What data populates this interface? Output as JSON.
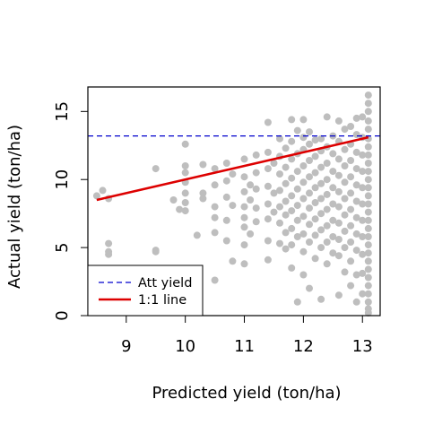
{
  "chart_data": {
    "type": "scatter",
    "xlabel": "Predicted yield (ton/ha)",
    "ylabel": "Actual yield (ton/ha)",
    "xlim": [
      8.35,
      13.3
    ],
    "ylim": [
      0,
      16.8
    ],
    "x_ticks": [
      "9",
      "10",
      "11",
      "12",
      "13"
    ],
    "y_ticks": [
      "0",
      "5",
      "10",
      "15"
    ],
    "grid": false,
    "legend_position": "bottom-left",
    "point_color": "#bebebe",
    "att_yield": {
      "label": "Att yield",
      "value": 13.2,
      "color": "#0000cd",
      "style": "dashed"
    },
    "one_to_one": {
      "label": "1:1 line",
      "color": "#dd0000",
      "style": "solid",
      "points": [
        [
          8.5,
          8.5
        ],
        [
          13.1,
          13.1
        ]
      ]
    },
    "points": [
      [
        8.5,
        8.8
      ],
      [
        8.6,
        9.2
      ],
      [
        8.7,
        8.6
      ],
      [
        8.7,
        5.3
      ],
      [
        8.7,
        4.7
      ],
      [
        8.7,
        4.5
      ],
      [
        9.5,
        10.8
      ],
      [
        9.5,
        4.8
      ],
      [
        9.5,
        4.7
      ],
      [
        9.8,
        8.5
      ],
      [
        9.9,
        7.8
      ],
      [
        10.0,
        12.6
      ],
      [
        10.0,
        11.0
      ],
      [
        10.0,
        10.5
      ],
      [
        10.0,
        9.8
      ],
      [
        10.0,
        9.0
      ],
      [
        10.0,
        8.3
      ],
      [
        10.0,
        7.7
      ],
      [
        10.2,
        5.9
      ],
      [
        10.3,
        11.1
      ],
      [
        10.3,
        9.0
      ],
      [
        10.3,
        8.6
      ],
      [
        10.5,
        10.8
      ],
      [
        10.5,
        9.6
      ],
      [
        10.5,
        8.0
      ],
      [
        10.5,
        7.2
      ],
      [
        10.5,
        6.1
      ],
      [
        10.5,
        2.6
      ],
      [
        10.7,
        11.2
      ],
      [
        10.7,
        9.9
      ],
      [
        10.7,
        8.7
      ],
      [
        10.7,
        7.0
      ],
      [
        10.7,
        5.5
      ],
      [
        10.8,
        10.4
      ],
      [
        10.8,
        8.1
      ],
      [
        10.8,
        4.0
      ],
      [
        11.0,
        11.5
      ],
      [
        11.0,
        10.2
      ],
      [
        11.0,
        9.1
      ],
      [
        11.0,
        8.0
      ],
      [
        11.0,
        7.2
      ],
      [
        11.0,
        6.5
      ],
      [
        11.0,
        5.2
      ],
      [
        11.0,
        3.8
      ],
      [
        11.1,
        9.6
      ],
      [
        11.1,
        8.5
      ],
      [
        11.1,
        6.0
      ],
      [
        11.2,
        11.8
      ],
      [
        11.2,
        10.5
      ],
      [
        11.2,
        9.3
      ],
      [
        11.2,
        7.9
      ],
      [
        11.2,
        6.9
      ],
      [
        11.4,
        14.2
      ],
      [
        11.4,
        12.0
      ],
      [
        11.4,
        10.8
      ],
      [
        11.4,
        9.5
      ],
      [
        11.4,
        8.2
      ],
      [
        11.4,
        7.1
      ],
      [
        11.4,
        5.5
      ],
      [
        11.4,
        4.1
      ],
      [
        11.5,
        11.2
      ],
      [
        11.5,
        9.0
      ],
      [
        11.5,
        7.6
      ],
      [
        11.6,
        13.0
      ],
      [
        11.6,
        11.7
      ],
      [
        11.6,
        10.4
      ],
      [
        11.6,
        9.2
      ],
      [
        11.6,
        8.0
      ],
      [
        11.6,
        6.8
      ],
      [
        11.6,
        5.3
      ],
      [
        11.7,
        12.3
      ],
      [
        11.7,
        10.9
      ],
      [
        11.7,
        9.7
      ],
      [
        11.7,
        8.4
      ],
      [
        11.7,
        7.4
      ],
      [
        11.7,
        6.1
      ],
      [
        11.7,
        4.9
      ],
      [
        11.8,
        14.4
      ],
      [
        11.8,
        12.8
      ],
      [
        11.8,
        11.5
      ],
      [
        11.8,
        10.1
      ],
      [
        11.8,
        8.8
      ],
      [
        11.8,
        7.7
      ],
      [
        11.8,
        6.4
      ],
      [
        11.8,
        5.2
      ],
      [
        11.8,
        3.5
      ],
      [
        11.9,
        13.6
      ],
      [
        11.9,
        11.9
      ],
      [
        11.9,
        10.6
      ],
      [
        11.9,
        9.3
      ],
      [
        11.9,
        8.1
      ],
      [
        11.9,
        7.0
      ],
      [
        11.9,
        5.8
      ],
      [
        11.9,
        1.0
      ],
      [
        12.0,
        14.4
      ],
      [
        12.0,
        13.1
      ],
      [
        12.0,
        12.2
      ],
      [
        12.0,
        11.0
      ],
      [
        12.0,
        9.8
      ],
      [
        12.0,
        8.6
      ],
      [
        12.0,
        7.3
      ],
      [
        12.0,
        6.0
      ],
      [
        12.0,
        4.7
      ],
      [
        12.0,
        3.0
      ],
      [
        12.1,
        13.5
      ],
      [
        12.1,
        12.6
      ],
      [
        12.1,
        11.4
      ],
      [
        12.1,
        10.2
      ],
      [
        12.1,
        9.0
      ],
      [
        12.1,
        7.9
      ],
      [
        12.1,
        6.7
      ],
      [
        12.1,
        5.4
      ],
      [
        12.1,
        2.0
      ],
      [
        12.2,
        12.9
      ],
      [
        12.2,
        11.7
      ],
      [
        12.2,
        10.5
      ],
      [
        12.2,
        9.4
      ],
      [
        12.2,
        8.3
      ],
      [
        12.2,
        7.1
      ],
      [
        12.2,
        5.9
      ],
      [
        12.2,
        4.2
      ],
      [
        12.3,
        13.0
      ],
      [
        12.3,
        12.1
      ],
      [
        12.3,
        10.9
      ],
      [
        12.3,
        9.7
      ],
      [
        12.3,
        8.6
      ],
      [
        12.3,
        7.5
      ],
      [
        12.3,
        6.3
      ],
      [
        12.3,
        5.0
      ],
      [
        12.3,
        1.2
      ],
      [
        12.4,
        14.6
      ],
      [
        12.4,
        12.4
      ],
      [
        12.4,
        11.2
      ],
      [
        12.4,
        10.0
      ],
      [
        12.4,
        8.9
      ],
      [
        12.4,
        7.8
      ],
      [
        12.4,
        6.6
      ],
      [
        12.4,
        5.4
      ],
      [
        12.4,
        3.8
      ],
      [
        12.5,
        13.2
      ],
      [
        12.5,
        11.9
      ],
      [
        12.5,
        10.6
      ],
      [
        12.5,
        9.4
      ],
      [
        12.5,
        8.2
      ],
      [
        12.5,
        7.0
      ],
      [
        12.5,
        5.8
      ],
      [
        12.5,
        4.6
      ],
      [
        12.6,
        14.3
      ],
      [
        12.6,
        12.8
      ],
      [
        12.6,
        11.5
      ],
      [
        12.6,
        10.3
      ],
      [
        12.6,
        9.1
      ],
      [
        12.6,
        8.0
      ],
      [
        12.6,
        6.8
      ],
      [
        12.6,
        5.6
      ],
      [
        12.6,
        4.4
      ],
      [
        12.6,
        1.5
      ],
      [
        12.7,
        13.7
      ],
      [
        12.7,
        12.2
      ],
      [
        12.7,
        11.0
      ],
      [
        12.7,
        9.8
      ],
      [
        12.7,
        8.6
      ],
      [
        12.7,
        7.4
      ],
      [
        12.7,
        6.2
      ],
      [
        12.7,
        5.0
      ],
      [
        12.7,
        3.2
      ],
      [
        12.8,
        13.9
      ],
      [
        12.8,
        12.6
      ],
      [
        12.8,
        11.4
      ],
      [
        12.8,
        10.2
      ],
      [
        12.8,
        9.0
      ],
      [
        12.8,
        7.8
      ],
      [
        12.8,
        6.6
      ],
      [
        12.8,
        5.4
      ],
      [
        12.8,
        4.0
      ],
      [
        12.8,
        2.2
      ],
      [
        12.9,
        14.5
      ],
      [
        12.9,
        13.3
      ],
      [
        12.9,
        12.0
      ],
      [
        12.9,
        10.8
      ],
      [
        12.9,
        9.6
      ],
      [
        12.9,
        8.4
      ],
      [
        12.9,
        7.2
      ],
      [
        12.9,
        6.0
      ],
      [
        12.9,
        4.8
      ],
      [
        12.9,
        3.0
      ],
      [
        12.9,
        1.0
      ],
      [
        13.0,
        14.6
      ],
      [
        13.0,
        13.1
      ],
      [
        13.0,
        11.8
      ],
      [
        13.0,
        10.6
      ],
      [
        13.0,
        9.4
      ],
      [
        13.0,
        8.2
      ],
      [
        13.0,
        7.0
      ],
      [
        13.0,
        5.8
      ],
      [
        13.0,
        4.5
      ],
      [
        13.0,
        3.1
      ],
      [
        13.0,
        1.6
      ],
      [
        13.1,
        16.2
      ],
      [
        13.1,
        15.6
      ],
      [
        13.1,
        15.0
      ],
      [
        13.1,
        14.3
      ],
      [
        13.1,
        13.7
      ],
      [
        13.1,
        13.0
      ],
      [
        13.1,
        12.4
      ],
      [
        13.1,
        11.8
      ],
      [
        13.1,
        11.2
      ],
      [
        13.1,
        10.6
      ],
      [
        13.1,
        10.0
      ],
      [
        13.1,
        9.4
      ],
      [
        13.1,
        8.8
      ],
      [
        13.1,
        8.2
      ],
      [
        13.1,
        7.6
      ],
      [
        13.1,
        7.0
      ],
      [
        13.1,
        6.4
      ],
      [
        13.1,
        5.8
      ],
      [
        13.1,
        5.2
      ],
      [
        13.1,
        4.6
      ],
      [
        13.1,
        4.0
      ],
      [
        13.1,
        3.4
      ],
      [
        13.1,
        2.8
      ],
      [
        13.1,
        2.2
      ],
      [
        13.1,
        1.6
      ],
      [
        13.1,
        1.0
      ],
      [
        13.1,
        0.5
      ],
      [
        13.1,
        0.2
      ]
    ]
  }
}
